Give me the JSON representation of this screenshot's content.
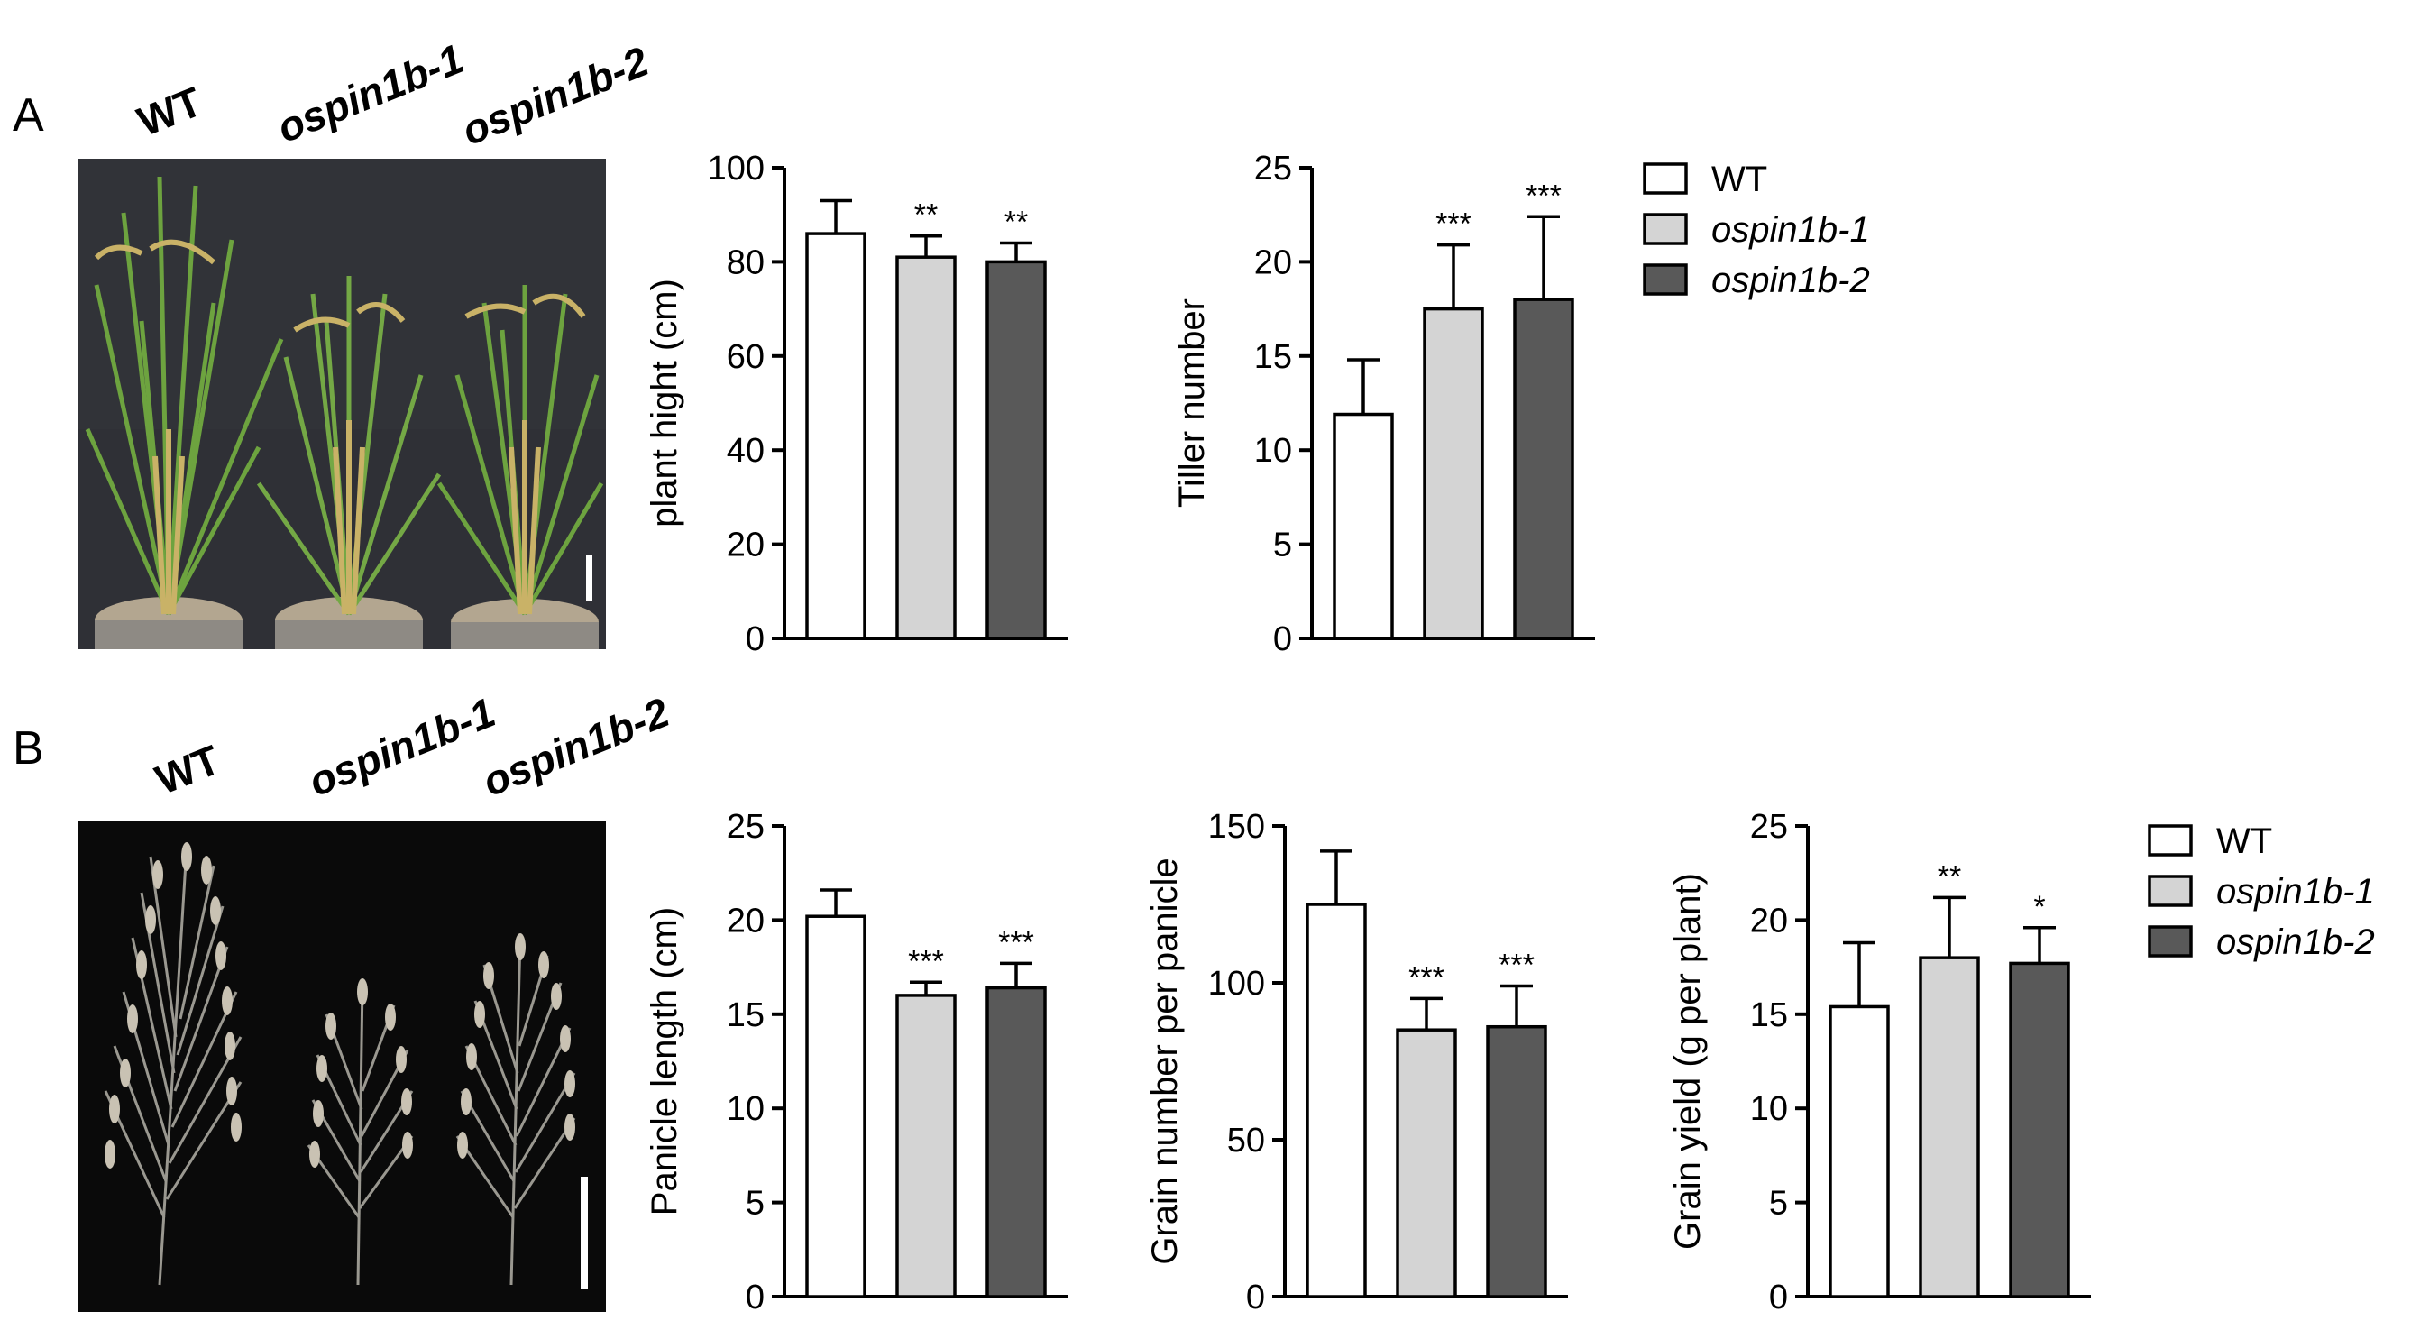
{
  "panels": {
    "a_letter": "A",
    "b_letter": "B"
  },
  "genotypes": [
    "WT",
    "ospin1b-1",
    "ospin1b-2"
  ],
  "legend": [
    {
      "label": "WT",
      "color": "#ffffff"
    },
    {
      "label": "ospin1b-1",
      "color": "#d4d4d4"
    },
    {
      "label": "ospin1b-2",
      "color": "#595959"
    }
  ],
  "chart_data": [
    {
      "type": "bar",
      "ylabel": "plant hight (cm)",
      "ylim": [
        0,
        100
      ],
      "ticks": [
        0,
        20,
        40,
        60,
        80,
        100
      ],
      "categories": [
        "WT",
        "ospin1b-1",
        "ospin1b-2"
      ],
      "values": [
        86,
        81,
        80
      ],
      "errors": [
        7,
        4.5,
        4
      ],
      "significance": [
        "",
        "**",
        "**"
      ]
    },
    {
      "type": "bar",
      "ylabel": "Tiller number",
      "ylim": [
        0,
        25
      ],
      "ticks": [
        0,
        5,
        10,
        15,
        20,
        25
      ],
      "categories": [
        "WT",
        "ospin1b-1",
        "ospin1b-2"
      ],
      "values": [
        11.9,
        17.5,
        18
      ],
      "errors": [
        2.9,
        3.4,
        4.4
      ],
      "significance": [
        "",
        "***",
        "***"
      ]
    },
    {
      "type": "bar",
      "ylabel": "Panicle length (cm)",
      "ylim": [
        0,
        25
      ],
      "ticks": [
        0,
        5,
        10,
        15,
        20,
        25
      ],
      "categories": [
        "WT",
        "ospin1b-1",
        "ospin1b-2"
      ],
      "values": [
        20.2,
        16,
        16.4
      ],
      "errors": [
        1.4,
        0.7,
        1.3
      ],
      "significance": [
        "",
        "***",
        "***"
      ]
    },
    {
      "type": "bar",
      "ylabel": "Grain number per panicle",
      "ylim": [
        0,
        150
      ],
      "ticks": [
        0,
        50,
        100,
        150
      ],
      "categories": [
        "WT",
        "ospin1b-1",
        "ospin1b-2"
      ],
      "values": [
        125,
        85,
        86
      ],
      "errors": [
        17,
        10,
        13
      ],
      "significance": [
        "",
        "***",
        "***"
      ]
    },
    {
      "type": "bar",
      "ylabel": "Grain yield (g per plant)",
      "ylim": [
        0,
        25
      ],
      "ticks": [
        0,
        5,
        10,
        15,
        20,
        25
      ],
      "categories": [
        "WT",
        "ospin1b-1",
        "ospin1b-2"
      ],
      "values": [
        15.4,
        18,
        17.7
      ],
      "errors": [
        3.4,
        3.2,
        1.9
      ],
      "significance": [
        "",
        "**",
        "*"
      ]
    }
  ]
}
